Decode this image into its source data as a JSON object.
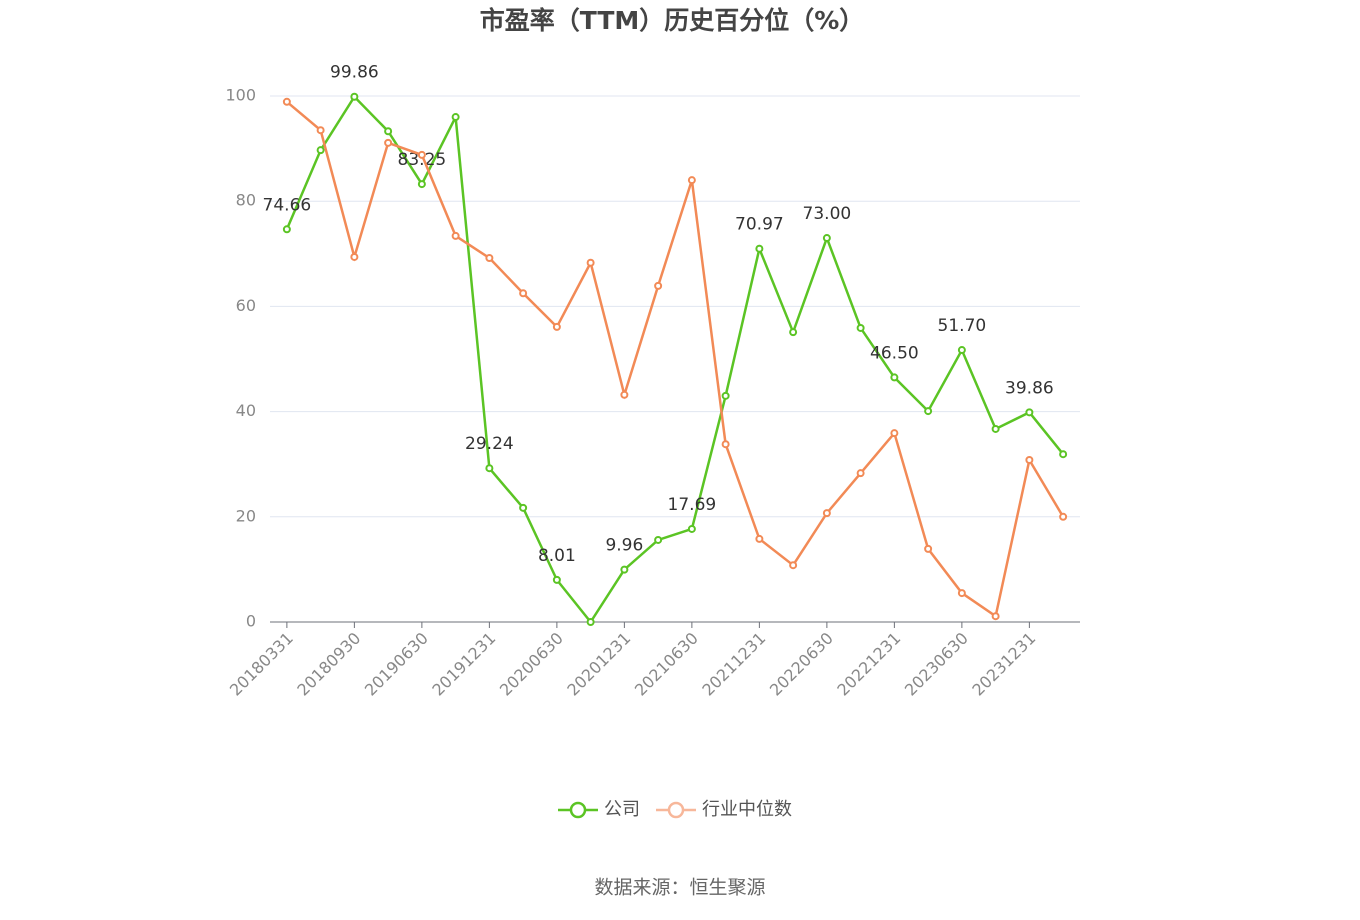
{
  "chart_data": {
    "type": "line",
    "title": "市盈率（TTM）历史百分位（%）",
    "source": "数据来源：恒生聚源",
    "categories": [
      "20180331",
      null,
      "20180930",
      null,
      "20190630",
      null,
      "20191231",
      null,
      "20200630",
      null,
      "20201231",
      null,
      "20210630",
      null,
      "20211231",
      null,
      "20220630",
      null,
      "20221231",
      null,
      "20230630",
      null,
      "20231231",
      null
    ],
    "series": [
      {
        "name": "公司",
        "color": "#5bc424",
        "values": [
          74.66,
          89.7,
          99.86,
          93.3,
          83.25,
          96.0,
          29.24,
          21.7,
          8.01,
          0,
          9.96,
          15.6,
          17.69,
          43.0,
          70.97,
          55.1,
          73.0,
          55.9,
          46.5,
          40.1,
          51.7,
          36.7,
          39.86,
          31.9
        ],
        "value_labels": [
          "74.66",
          null,
          "99.86",
          null,
          "83.25",
          null,
          "29.24",
          null,
          "8.01",
          null,
          "9.96",
          null,
          "17.69",
          null,
          "70.97",
          null,
          "73.00",
          null,
          "46.50",
          null,
          "51.70",
          null,
          "39.86",
          null
        ]
      },
      {
        "name": "行业中位数",
        "color": "#f28a56",
        "values": [
          98.9,
          93.5,
          69.4,
          91.1,
          88.8,
          73.4,
          69.2,
          62.5,
          56.1,
          68.3,
          43.2,
          63.9,
          84.0,
          33.8,
          15.8,
          10.8,
          20.7,
          28.3,
          35.9,
          13.9,
          5.5,
          1.1,
          30.8,
          20.0
        ]
      }
    ],
    "ylim": [
      0,
      100
    ],
    "yticks": [
      0,
      20,
      40,
      60,
      80,
      100
    ],
    "grid": true
  }
}
